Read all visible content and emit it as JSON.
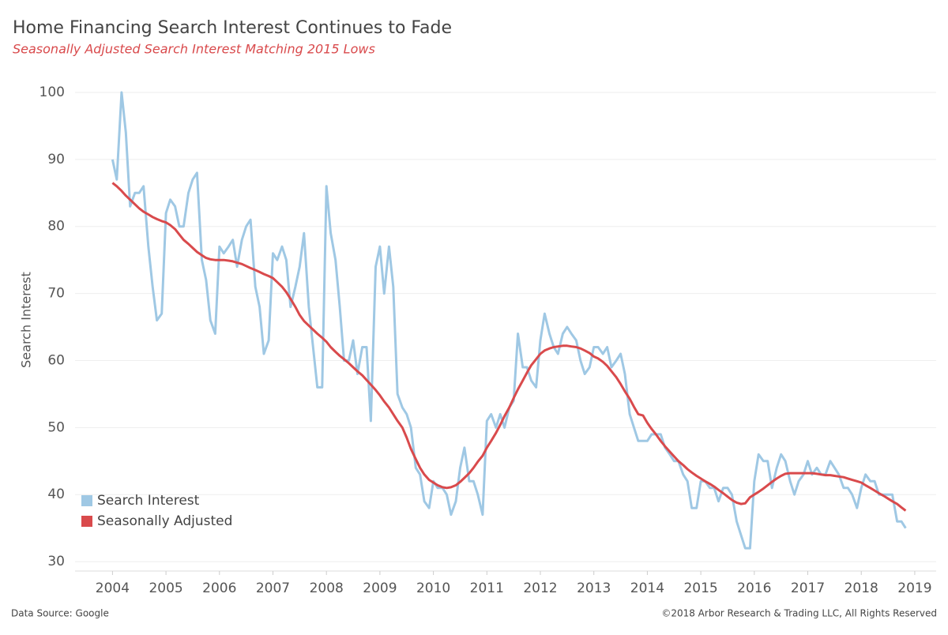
{
  "chart_data": {
    "type": "line",
    "title": "Home Financing Search Interest Continues to Fade",
    "subtitle": "Seasonally Adjusted Search Interest Matching 2015 Lows",
    "y_label": "Search Interest",
    "source": "Data Source: Google",
    "copyright": "©2018 Arbor Research & Trading LLC, All Rights Reserved",
    "x": [
      2004,
      2004.08,
      2004.17,
      2004.25,
      2004.33,
      2004.42,
      2004.5,
      2004.58,
      2004.67,
      2004.75,
      2004.83,
      2004.92,
      2005,
      2005.08,
      2005.17,
      2005.25,
      2005.33,
      2005.42,
      2005.5,
      2005.58,
      2005.67,
      2005.75,
      2005.83,
      2005.92,
      2006,
      2006.08,
      2006.17,
      2006.25,
      2006.33,
      2006.42,
      2006.5,
      2006.58,
      2006.67,
      2006.75,
      2006.83,
      2006.92,
      2007,
      2007.08,
      2007.17,
      2007.25,
      2007.33,
      2007.42,
      2007.5,
      2007.58,
      2007.67,
      2007.75,
      2007.83,
      2007.92,
      2008,
      2008.08,
      2008.17,
      2008.25,
      2008.33,
      2008.42,
      2008.5,
      2008.58,
      2008.67,
      2008.75,
      2008.83,
      2008.92,
      2009,
      2009.08,
      2009.17,
      2009.25,
      2009.33,
      2009.42,
      2009.5,
      2009.58,
      2009.67,
      2009.75,
      2009.83,
      2009.92,
      2010,
      2010.08,
      2010.17,
      2010.25,
      2010.33,
      2010.42,
      2010.5,
      2010.58,
      2010.67,
      2010.75,
      2010.83,
      2010.92,
      2011,
      2011.08,
      2011.17,
      2011.25,
      2011.33,
      2011.42,
      2011.5,
      2011.58,
      2011.67,
      2011.75,
      2011.83,
      2011.92,
      2012,
      2012.08,
      2012.17,
      2012.25,
      2012.33,
      2012.42,
      2012.5,
      2012.58,
      2012.67,
      2012.75,
      2012.83,
      2012.92,
      2013,
      2013.08,
      2013.17,
      2013.25,
      2013.33,
      2013.42,
      2013.5,
      2013.58,
      2013.67,
      2013.75,
      2013.83,
      2013.92,
      2014,
      2014.08,
      2014.17,
      2014.25,
      2014.33,
      2014.42,
      2014.5,
      2014.58,
      2014.67,
      2014.75,
      2014.83,
      2014.92,
      2015,
      2015.08,
      2015.17,
      2015.25,
      2015.33,
      2015.42,
      2015.5,
      2015.58,
      2015.67,
      2015.75,
      2015.83,
      2015.92,
      2016,
      2016.08,
      2016.17,
      2016.25,
      2016.33,
      2016.42,
      2016.5,
      2016.58,
      2016.67,
      2016.75,
      2016.83,
      2016.92,
      2017,
      2017.08,
      2017.17,
      2017.25,
      2017.33,
      2017.42,
      2017.5,
      2017.58,
      2017.67,
      2017.75,
      2017.83,
      2017.92,
      2018,
      2018.08,
      2018.17,
      2018.25,
      2018.33,
      2018.42,
      2018.5,
      2018.58,
      2018.67,
      2018.75,
      2018.83
    ],
    "series": [
      {
        "name": "Search Interest",
        "color": "#9fc8e4",
        "values": [
          90,
          87,
          100,
          94,
          83,
          85,
          85,
          86,
          77,
          71,
          66,
          67,
          82,
          84,
          83,
          80,
          80,
          85,
          87,
          88,
          75,
          72,
          66,
          64,
          77,
          76,
          77,
          78,
          74,
          78,
          80,
          81,
          71,
          68,
          61,
          63,
          76,
          75,
          77,
          75,
          68,
          71,
          74,
          79,
          68,
          62,
          56,
          56,
          86,
          79,
          75,
          68,
          60,
          60,
          63,
          58,
          62,
          62,
          51,
          74,
          77,
          70,
          77,
          71,
          55,
          53,
          52,
          50,
          44,
          43,
          39,
          38,
          42,
          41,
          41,
          40,
          37,
          39,
          44,
          47,
          42,
          42,
          40,
          37,
          51,
          52,
          50,
          52,
          50,
          53,
          54,
          64,
          59,
          59,
          57,
          56,
          63,
          67,
          64,
          62,
          61,
          64,
          65,
          64,
          63,
          60,
          58,
          59,
          62,
          62,
          61,
          62,
          59,
          60,
          61,
          58,
          52,
          50,
          48,
          48,
          48,
          49,
          49,
          49,
          47,
          46,
          45,
          45,
          43,
          42,
          38,
          38,
          42,
          42,
          41,
          41,
          39,
          41,
          41,
          40,
          36,
          34,
          32,
          32,
          42,
          46,
          45,
          45,
          41,
          44,
          46,
          45,
          42,
          40,
          42,
          43,
          45,
          43,
          44,
          43,
          43,
          45,
          44,
          43,
          41,
          41,
          40,
          38,
          41,
          43,
          42,
          42,
          40,
          40,
          40,
          40,
          36,
          36,
          35
        ]
      },
      {
        "name": "Seasonally Adjusted",
        "color": "#d94a4c",
        "values": [
          86.5,
          86,
          85.3,
          84.6,
          84,
          83.3,
          82.7,
          82.2,
          81.8,
          81.4,
          81.1,
          80.8,
          80.6,
          80.2,
          79.6,
          78.8,
          78,
          77.4,
          76.8,
          76.2,
          75.7,
          75.3,
          75.1,
          75,
          75,
          75,
          74.9,
          74.8,
          74.6,
          74.4,
          74.1,
          73.8,
          73.5,
          73.2,
          72.9,
          72.6,
          72.3,
          71.7,
          71,
          70.2,
          69.2,
          68,
          66.8,
          65.9,
          65.2,
          64.6,
          64,
          63.4,
          62.8,
          62,
          61.3,
          60.7,
          60.2,
          59.6,
          59,
          58.4,
          57.8,
          57.1,
          56.4,
          55.6,
          54.8,
          53.9,
          53,
          52,
          51,
          50,
          48.5,
          46.8,
          45.3,
          44,
          43,
          42.2,
          41.8,
          41.4,
          41.1,
          41,
          41.1,
          41.4,
          41.9,
          42.5,
          43.2,
          44,
          44.9,
          45.8,
          47,
          48,
          49.2,
          50.4,
          51.7,
          53,
          54.4,
          55.7,
          57,
          58.2,
          59.3,
          60.2,
          61,
          61.5,
          61.8,
          62,
          62.1,
          62.2,
          62.2,
          62.1,
          62,
          61.8,
          61.5,
          61.1,
          60.6,
          60.3,
          59.8,
          59.2,
          58.4,
          57.5,
          56.5,
          55.4,
          54.3,
          53.1,
          52,
          51.8,
          50.7,
          49.8,
          48.9,
          48,
          47.2,
          46.4,
          45.7,
          45,
          44.4,
          43.8,
          43.3,
          42.8,
          42.4,
          42,
          41.6,
          41.2,
          40.7,
          40.2,
          39.7,
          39.2,
          38.8,
          38.6,
          38.7,
          39.6,
          40,
          40.4,
          40.9,
          41.4,
          41.9,
          42.4,
          42.8,
          43.1,
          43.2,
          43.2,
          43.2,
          43.2,
          43.2,
          43.2,
          43.1,
          43,
          42.9,
          42.9,
          42.8,
          42.7,
          42.6,
          42.4,
          42.2,
          42,
          41.8,
          41.4,
          41,
          40.6,
          40.2,
          39.8,
          39.4,
          39,
          38.6,
          38.1,
          37.6
        ]
      }
    ],
    "xlim": [
      2003.3,
      2019.4
    ],
    "xticks": [
      2004,
      2005,
      2006,
      2007,
      2008,
      2009,
      2010,
      2011,
      2012,
      2013,
      2014,
      2015,
      2016,
      2017,
      2018,
      2019
    ],
    "ylim": [
      28.6,
      102
    ],
    "yticks": [
      30,
      40,
      50,
      60,
      70,
      80,
      90,
      100
    ],
    "grid": true,
    "legend": "lower left"
  }
}
